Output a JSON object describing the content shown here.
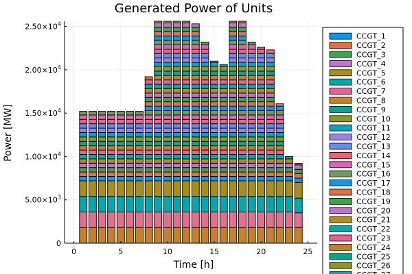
{
  "chart_data": {
    "type": "bar",
    "stacked": true,
    "title": "Generated Power of Units",
    "xlabel": "Time [h]",
    "ylabel": "Power [MW]",
    "xlim": [
      -1,
      26
    ],
    "ylim": [
      0,
      25600
    ],
    "grid": true,
    "legend_position": "right",
    "x_ticks": [
      {
        "value": 0,
        "label": "0"
      },
      {
        "value": 5,
        "label": "5"
      },
      {
        "value": 10,
        "label": "10"
      },
      {
        "value": 15,
        "label": "15"
      },
      {
        "value": 20,
        "label": "20"
      },
      {
        "value": 25,
        "label": "25"
      }
    ],
    "y_ticks": [
      {
        "value": 0,
        "base": "0",
        "exp": ""
      },
      {
        "value": 5000,
        "base": "5.00×10",
        "exp": "3"
      },
      {
        "value": 10000,
        "base": "1.00×10",
        "exp": "4"
      },
      {
        "value": 15000,
        "base": "1.50×10",
        "exp": "4"
      },
      {
        "value": 20000,
        "base": "2.00×10",
        "exp": "4"
      },
      {
        "value": 25000,
        "base": "2.50×10",
        "exp": "4"
      }
    ],
    "x": [
      1,
      2,
      3,
      4,
      5,
      6,
      7,
      8,
      9,
      10,
      11,
      12,
      13,
      14,
      15,
      16,
      17,
      18,
      19,
      20,
      21,
      22,
      23,
      24
    ],
    "totals": [
      15200,
      15200,
      15200,
      15200,
      15200,
      15200,
      15200,
      19200,
      25600,
      25600,
      25600,
      25600,
      25300,
      23200,
      21000,
      20600,
      25600,
      25600,
      23200,
      22600,
      22300,
      16100,
      10000,
      9200
    ],
    "base_units": [
      {
        "name": "CCGT_24",
        "color": "#c68125",
        "values": [
          1800,
          1800,
          1800,
          1800,
          1800,
          1800,
          1800,
          1800,
          1800,
          1800,
          1800,
          1800,
          1800,
          1800,
          1800,
          1800,
          1800,
          1800,
          1800,
          1800,
          1800,
          1800,
          1800,
          1800
        ]
      },
      {
        "name": "CCGT_23",
        "color": "#e26f8b",
        "values": [
          1800,
          1800,
          1800,
          1800,
          1800,
          1800,
          1800,
          1800,
          1800,
          1800,
          1800,
          1800,
          1800,
          1800,
          1800,
          1800,
          1800,
          1800,
          1800,
          1800,
          1800,
          1800,
          1800,
          1700
        ]
      },
      {
        "name": "CCGT_22",
        "color": "#00a9ad",
        "values": [
          1800,
          1800,
          1800,
          1800,
          1800,
          1800,
          1800,
          1800,
          1800,
          1800,
          1800,
          1800,
          1800,
          1800,
          1800,
          1800,
          1800,
          1800,
          1800,
          1800,
          1800,
          1800,
          1800,
          1700
        ]
      },
      {
        "name": "CCGT_21",
        "color": "#a98d19",
        "values": [
          1800,
          1800,
          1800,
          1800,
          1800,
          1800,
          1800,
          1800,
          1800,
          1800,
          1800,
          1800,
          1800,
          1800,
          1800,
          1800,
          1800,
          1800,
          1800,
          1800,
          1800,
          1800,
          1800,
          1800
        ]
      }
    ],
    "legend_entries": [
      {
        "name": "CCGT_1",
        "color": "#009af9"
      },
      {
        "name": "CCGT_2",
        "color": "#e26f46"
      },
      {
        "name": "CCGT_3",
        "color": "#3da44d"
      },
      {
        "name": "CCGT_4",
        "color": "#c271d2"
      },
      {
        "name": "CCGT_5",
        "color": "#ac8e18"
      },
      {
        "name": "CCGT_6",
        "color": "#00a9ad"
      },
      {
        "name": "CCGT_7",
        "color": "#ed5e93"
      },
      {
        "name": "CCGT_8",
        "color": "#c68125"
      },
      {
        "name": "CCGT_9",
        "color": "#00a98d"
      },
      {
        "name": "CCGT_10",
        "color": "#8e971e"
      },
      {
        "name": "CCGT_11",
        "color": "#00a6c3"
      },
      {
        "name": "CCGT_12",
        "color": "#9b7fe8"
      },
      {
        "name": "CCGT_13",
        "color": "#618df6"
      },
      {
        "name": "CCGT_14",
        "color": "#f05f73"
      },
      {
        "name": "CCGT_15",
        "color": "#dd64b5"
      },
      {
        "name": "CCGT_16",
        "color": "#6b9d59"
      },
      {
        "name": "CCGT_17",
        "color": "#009af9"
      },
      {
        "name": "CCGT_18",
        "color": "#e26f46"
      },
      {
        "name": "CCGT_19",
        "color": "#3da44d"
      },
      {
        "name": "CCGT_20",
        "color": "#c271d2"
      },
      {
        "name": "CCGT_21",
        "color": "#ac8e18"
      },
      {
        "name": "CCGT_22",
        "color": "#00a9ad"
      },
      {
        "name": "CCGT_23",
        "color": "#ed5e93"
      },
      {
        "name": "CCGT_24",
        "color": "#c68125"
      },
      {
        "name": "CCGT_25",
        "color": "#00a98d"
      },
      {
        "name": "CCGT_26",
        "color": "#8e971e"
      },
      {
        "name": "CCGT_27",
        "color": "#00a6c3"
      }
    ],
    "stripe_colors": [
      "#009af9",
      "#e26f46",
      "#3da44d",
      "#c271d2",
      "#ac8e18",
      "#00a9ad",
      "#ed5e93",
      "#c68125",
      "#00a98d",
      "#8e971e",
      "#00a6c3",
      "#9b7fe8",
      "#618df6",
      "#f05f73",
      "#dd64b5",
      "#6b9d59"
    ]
  }
}
